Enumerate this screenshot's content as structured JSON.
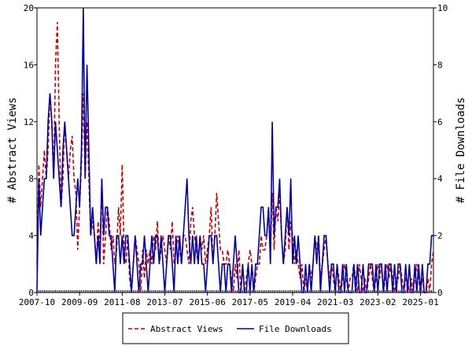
{
  "chart_data": {
    "type": "line",
    "y_label": "# Abstract Views",
    "y2_label": "# File Downloads",
    "categories": [
      "2007-10",
      null,
      null,
      null,
      null,
      null,
      null,
      null,
      null,
      null,
      null,
      null,
      null,
      null,
      null,
      null,
      null,
      null,
      null,
      null,
      null,
      null,
      null,
      "2009-09",
      null,
      null,
      null,
      null,
      null,
      null,
      null,
      null,
      null,
      null,
      null,
      null,
      null,
      null,
      null,
      null,
      null,
      null,
      null,
      null,
      null,
      null,
      "2011-08",
      null,
      null,
      null,
      null,
      null,
      null,
      null,
      null,
      null,
      null,
      null,
      null,
      null,
      null,
      null,
      null,
      null,
      null,
      null,
      null,
      null,
      null,
      "2013-07",
      null,
      null,
      null,
      null,
      null,
      null,
      null,
      null,
      null,
      null,
      null,
      null,
      null,
      null,
      null,
      null,
      null,
      null,
      null,
      null,
      null,
      null,
      "2015-06",
      null,
      null,
      null,
      null,
      null,
      null,
      null,
      null,
      null,
      null,
      null,
      null,
      null,
      null,
      null,
      null,
      null,
      null,
      null,
      null,
      null,
      null,
      "2017-05",
      null,
      null,
      null,
      null,
      null,
      null,
      null,
      null,
      null,
      null,
      null,
      null,
      null,
      null,
      null,
      null,
      null,
      null,
      null,
      null,
      null,
      null,
      "2019-04",
      null,
      null,
      null,
      null,
      null,
      null,
      null,
      null,
      null,
      null,
      null,
      null,
      null,
      null,
      null,
      null,
      null,
      null,
      null,
      null,
      null,
      null,
      "2021-03",
      null,
      null,
      null,
      null,
      null,
      null,
      null,
      null,
      null,
      null,
      null,
      null,
      null,
      null,
      null,
      null,
      null,
      null,
      null,
      null,
      null,
      null,
      "2023-02",
      null,
      null,
      null,
      null,
      null,
      null,
      null,
      null,
      null,
      null,
      null,
      null,
      null,
      null,
      null,
      null,
      null,
      null,
      null,
      null,
      null,
      null,
      "2025-01",
      null,
      null,
      null,
      null,
      null,
      null,
      null
    ],
    "series": [
      {
        "name": "Abstract Views",
        "color": "#cc0000",
        "dashed": true,
        "values": [
          2,
          9,
          6,
          8,
          10,
          8,
          10,
          14,
          12,
          8,
          16,
          19,
          12,
          6,
          8,
          12,
          10,
          8,
          10,
          11,
          8,
          7,
          3,
          6,
          9,
          14,
          8,
          12,
          8,
          4,
          5,
          4,
          2,
          5,
          3,
          8,
          2,
          4,
          6,
          5,
          3,
          4,
          2,
          3,
          6,
          4,
          9,
          3,
          2,
          4,
          1,
          0,
          2,
          4,
          3,
          2,
          0,
          3,
          1,
          3,
          2,
          3,
          2,
          4,
          3,
          5,
          2,
          3,
          4,
          3,
          2,
          4,
          3,
          5,
          2,
          3,
          4,
          3,
          2,
          4,
          4,
          3,
          2,
          5,
          6,
          4,
          3,
          2,
          4,
          3,
          4,
          2,
          3,
          4,
          6,
          2,
          4,
          7,
          5,
          3,
          3,
          2,
          2,
          3,
          2,
          1,
          0,
          2,
          1,
          3,
          0,
          2,
          0,
          1,
          2,
          3,
          2,
          0,
          1,
          2,
          2,
          4,
          3,
          3,
          4,
          6,
          3,
          7,
          3,
          6,
          5,
          7,
          4,
          2,
          3,
          6,
          3,
          5,
          4,
          2,
          3,
          2,
          1,
          2,
          0,
          1,
          0,
          2,
          1,
          2,
          4,
          3,
          4,
          1,
          2,
          3,
          4,
          2,
          1,
          2,
          1,
          0,
          2,
          1,
          0,
          1,
          2,
          1,
          0,
          1,
          1,
          2,
          1,
          0,
          2,
          1,
          0,
          1,
          0,
          1,
          2,
          1,
          0,
          1,
          2,
          1,
          2,
          0,
          1,
          2,
          1,
          2,
          1,
          0,
          1,
          1,
          2,
          1,
          0,
          1,
          1,
          0,
          1,
          0,
          1,
          2,
          1,
          0,
          1,
          0,
          0,
          1,
          0,
          2,
          3
        ]
      },
      {
        "name": "File Downloads",
        "color": "#0000aa",
        "dashed": false,
        "axis": "y2",
        "values": [
          0,
          4,
          2,
          3,
          4,
          4,
          6,
          7,
          6,
          4,
          6,
          5,
          4,
          3,
          5,
          6,
          5,
          4,
          3,
          2,
          2,
          3,
          4,
          3,
          5,
          10,
          4,
          8,
          5,
          2,
          3,
          2,
          1,
          2,
          1,
          4,
          2,
          3,
          3,
          2,
          2,
          1,
          0,
          2,
          2,
          1,
          2,
          1,
          2,
          2,
          1,
          0,
          1,
          2,
          1,
          0,
          1,
          1,
          2,
          1,
          0,
          1,
          2,
          1,
          2,
          2,
          1,
          2,
          1,
          0,
          1,
          2,
          2,
          1,
          0,
          2,
          1,
          2,
          1,
          2,
          3,
          4,
          2,
          1,
          2,
          1,
          2,
          1,
          2,
          1,
          1,
          0,
          1,
          2,
          2,
          1,
          2,
          2,
          1,
          0,
          1,
          1,
          0,
          1,
          1,
          0,
          1,
          2,
          1,
          0,
          0,
          1,
          0,
          0,
          1,
          0,
          1,
          0,
          1,
          1,
          2,
          3,
          3,
          2,
          2,
          3,
          1,
          6,
          2,
          3,
          3,
          4,
          2,
          1,
          2,
          3,
          2,
          4,
          1,
          2,
          1,
          2,
          1,
          0,
          0,
          1,
          0,
          1,
          0,
          1,
          2,
          1,
          2,
          0,
          1,
          2,
          2,
          1,
          0,
          1,
          1,
          0,
          1,
          0,
          0,
          1,
          0,
          1,
          0,
          0,
          0,
          1,
          0,
          1,
          0,
          0,
          1,
          0,
          0,
          1,
          1,
          1,
          0,
          1,
          0,
          1,
          1,
          0,
          1,
          0,
          1,
          1,
          0,
          1,
          0,
          1,
          1,
          0,
          0,
          1,
          0,
          1,
          0,
          0,
          1,
          0,
          1,
          0,
          1,
          0,
          0,
          1,
          1,
          2,
          2
        ]
      }
    ],
    "ylim": [
      0,
      20
    ],
    "yticks": [
      0,
      4,
      8,
      12,
      16,
      20
    ],
    "y2lim": [
      0,
      10
    ],
    "y2ticks": [
      0,
      2,
      4,
      6,
      8,
      10
    ]
  }
}
